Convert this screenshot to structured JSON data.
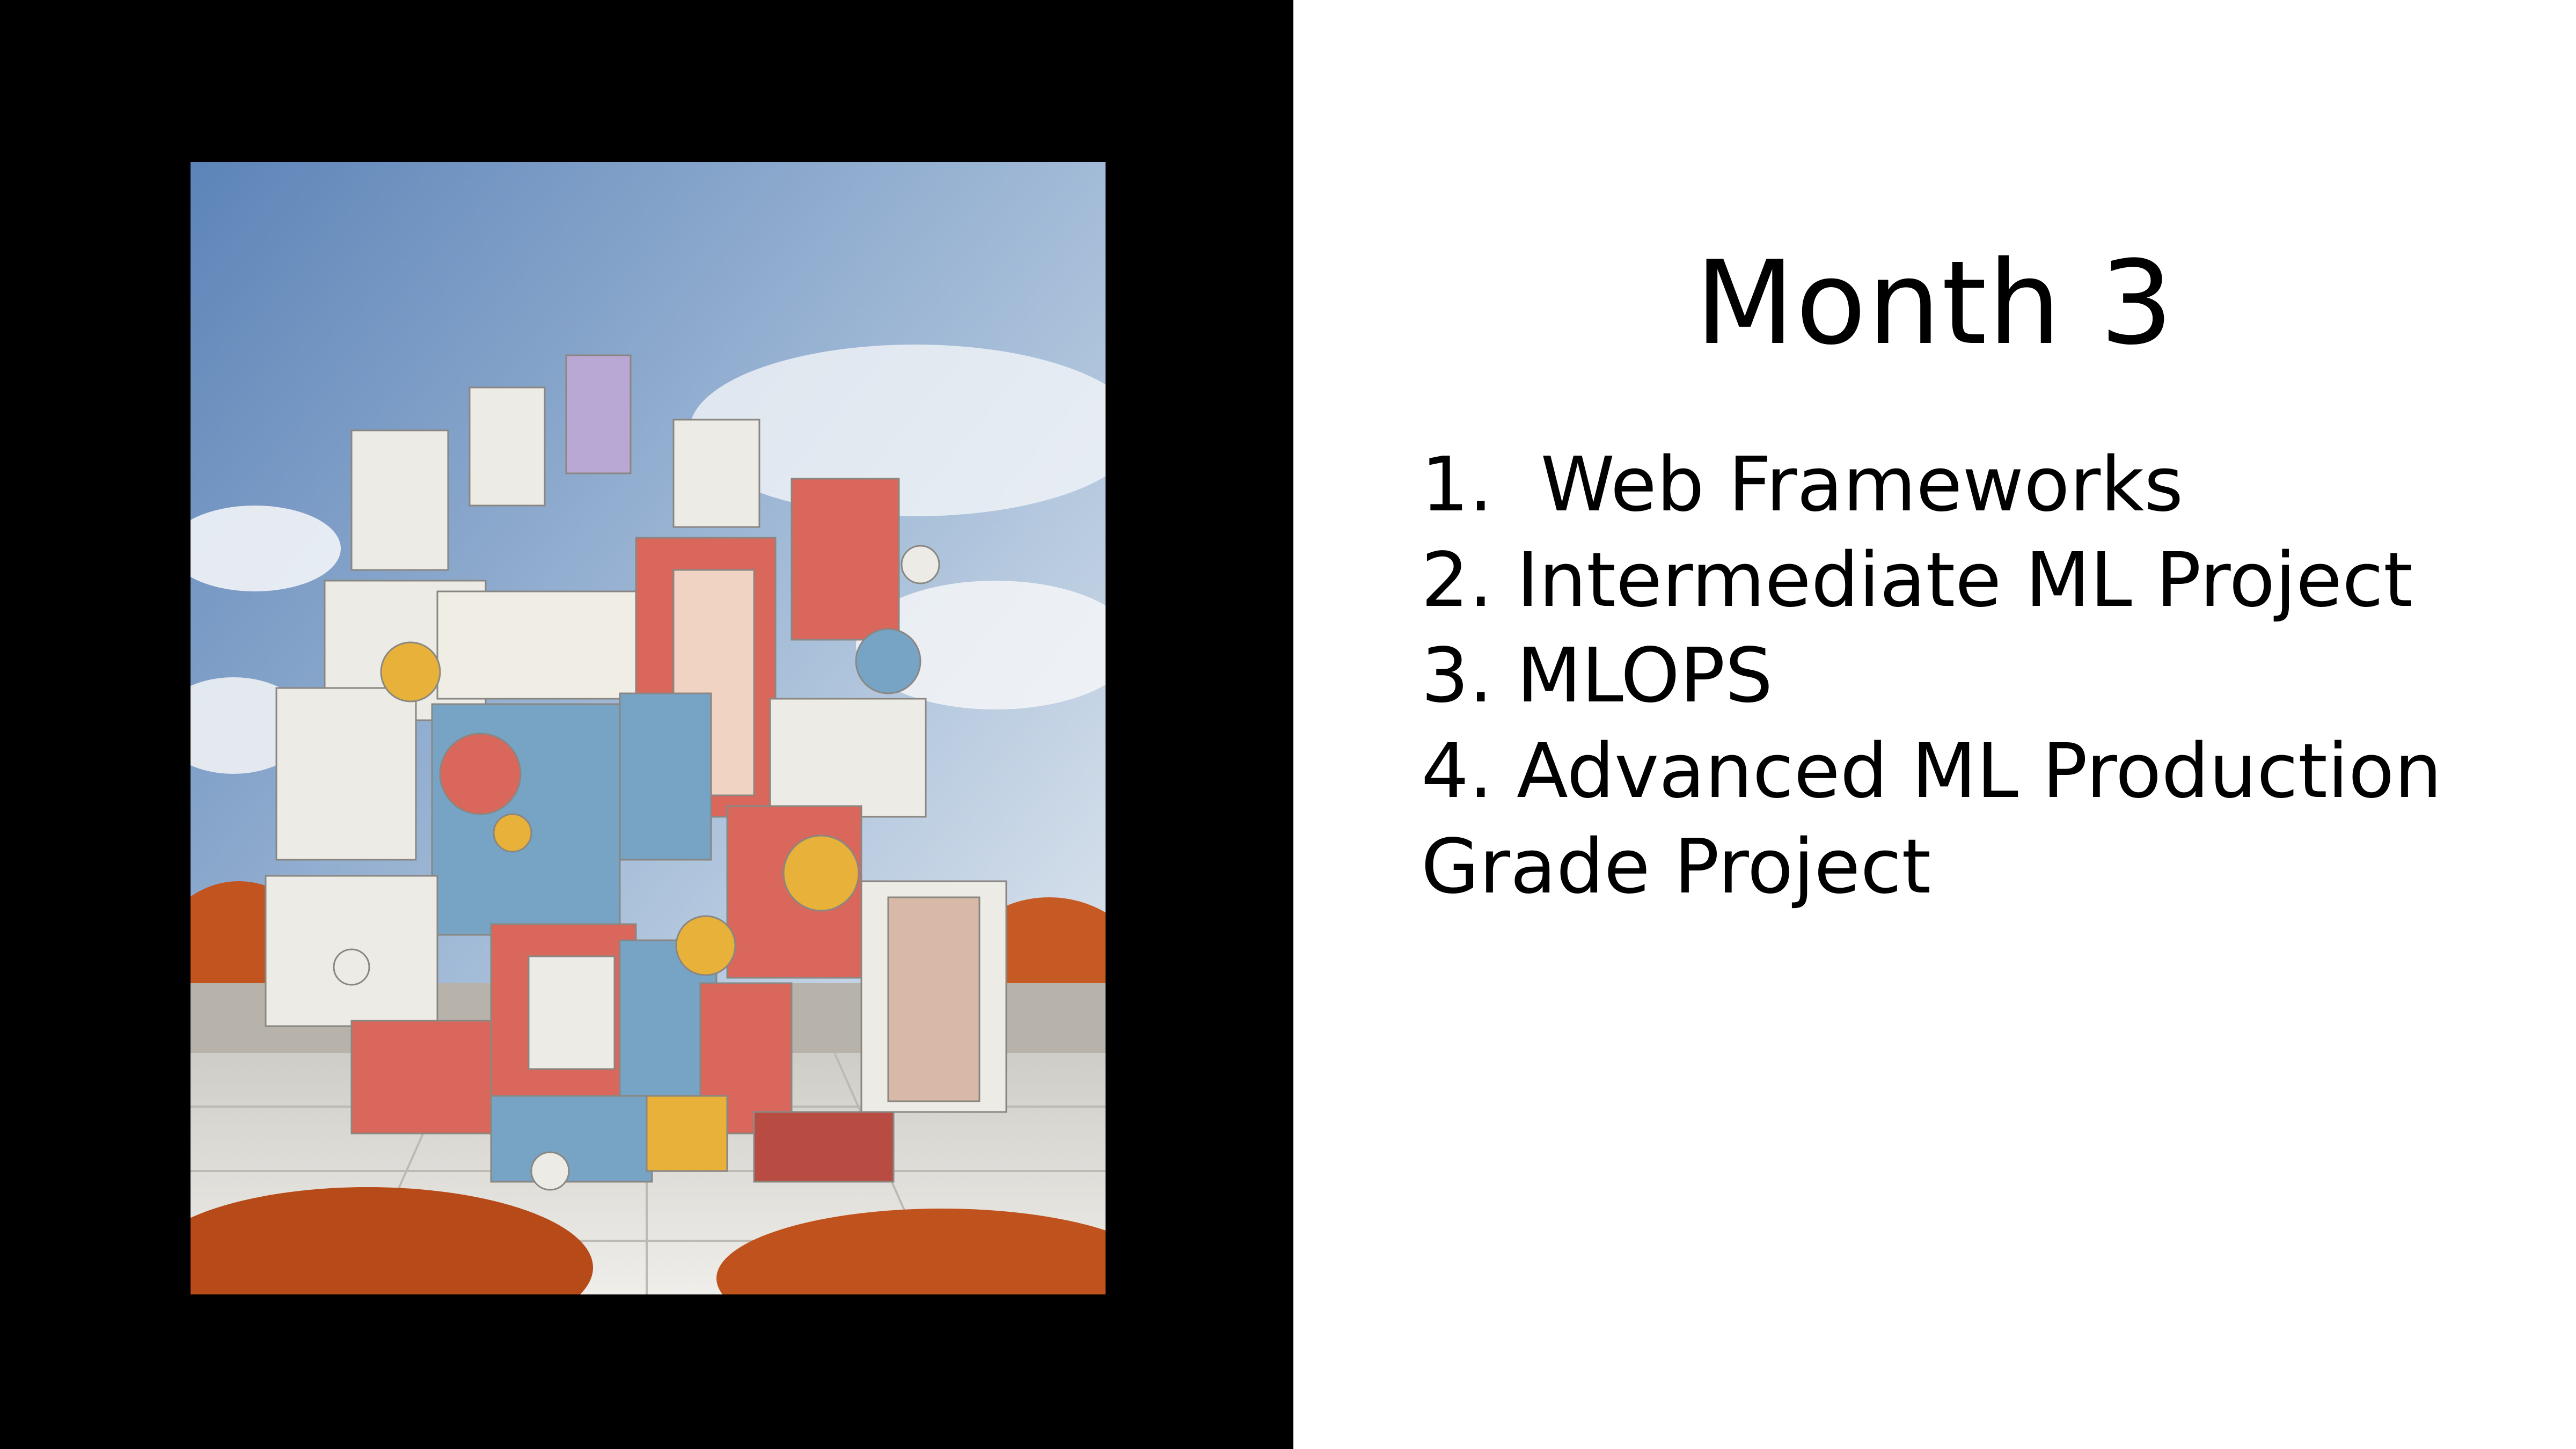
{
  "slide": {
    "title": "Month 3",
    "items": [
      {
        "number": "1.  ",
        "text": "Web Frameworks"
      },
      {
        "number": "2. ",
        "text": "Intermediate ML Project"
      },
      {
        "number": "3. ",
        "text": "MLOPS"
      },
      {
        "number": "4. ",
        "text": "Advanced ML Production Grade Project"
      }
    ]
  },
  "colors": {
    "left_background": "#000000",
    "right_background": "#ffffff",
    "text": "#000000",
    "sky_top": "#5d84b8",
    "sky_bottom": "#e9eef4",
    "block_red": "#d9675c",
    "block_blue": "#77a3c4",
    "block_yellow": "#e7b13a",
    "block_white": "#ecebe6",
    "block_lavender": "#b9a7d4",
    "foliage": "#c2541f",
    "deck": "#e3e2dd"
  },
  "artwork": {
    "description_icon": "modular-block-building-image"
  }
}
